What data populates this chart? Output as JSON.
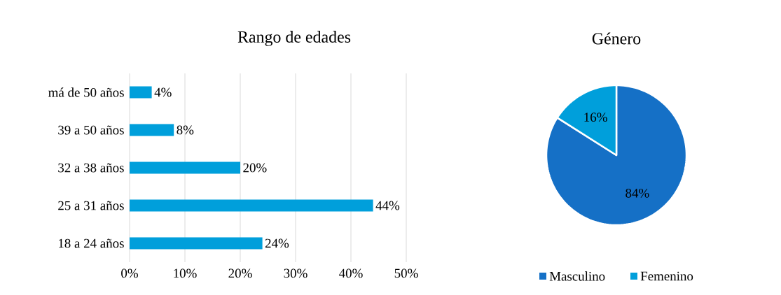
{
  "chart_data": [
    {
      "type": "bar",
      "orientation": "horizontal",
      "title": "Rango de edades",
      "categories": [
        "má de 50 años",
        "39 a 50 años",
        "32 a 38 años",
        "25 a 31 años",
        "18 a 24 años"
      ],
      "values": [
        4,
        8,
        20,
        44,
        24
      ],
      "value_labels": [
        "4%",
        "8%",
        "20%",
        "44%",
        "24%"
      ],
      "color": "#009fdb",
      "xlim": [
        0,
        50
      ],
      "xticks": [
        {
          "value": 0,
          "label": "0%"
        },
        {
          "value": 10,
          "label": "10%"
        },
        {
          "value": 20,
          "label": "20%"
        },
        {
          "value": 30,
          "label": "30%"
        },
        {
          "value": 40,
          "label": "40%"
        },
        {
          "value": 50,
          "label": "50%"
        }
      ],
      "grid": "x"
    },
    {
      "type": "pie",
      "title": "Género",
      "categories": [
        "Masculino",
        "Femenino"
      ],
      "values": [
        84,
        16
      ],
      "value_labels": [
        "84%",
        "16%"
      ],
      "colors": [
        "#1570c6",
        "#009fdb"
      ],
      "legend": "bottom"
    }
  ]
}
